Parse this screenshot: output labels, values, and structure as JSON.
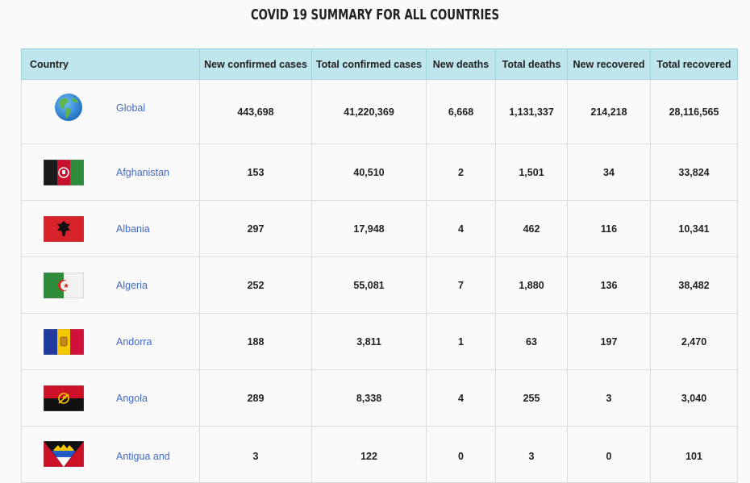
{
  "page": {
    "title": "COVID 19 SUMMARY FOR ALL COUNTRIES"
  },
  "table": {
    "headers": {
      "country": "Country",
      "new_confirmed": "New confirmed cases",
      "total_confirmed": "Total confirmed cases",
      "new_deaths": "New deaths",
      "total_deaths": "Total deaths",
      "new_recovered": "New recovered",
      "total_recovered": "Total recovered"
    },
    "rows": [
      {
        "country": "Global",
        "icon": "globe-icon",
        "new_confirmed": "443,698",
        "total_confirmed": "41,220,369",
        "new_deaths": "6,668",
        "total_deaths": "1,131,337",
        "new_recovered": "214,218",
        "total_recovered": "28,116,565"
      },
      {
        "country": "Afghanistan",
        "icon": "afghanistan-flag-icon",
        "new_confirmed": "153",
        "total_confirmed": "40,510",
        "new_deaths": "2",
        "total_deaths": "1,501",
        "new_recovered": "34",
        "total_recovered": "33,824"
      },
      {
        "country": "Albania",
        "icon": "albania-flag-icon",
        "new_confirmed": "297",
        "total_confirmed": "17,948",
        "new_deaths": "4",
        "total_deaths": "462",
        "new_recovered": "116",
        "total_recovered": "10,341"
      },
      {
        "country": "Algeria",
        "icon": "algeria-flag-icon",
        "new_confirmed": "252",
        "total_confirmed": "55,081",
        "new_deaths": "7",
        "total_deaths": "1,880",
        "new_recovered": "136",
        "total_recovered": "38,482"
      },
      {
        "country": "Andorra",
        "icon": "andorra-flag-icon",
        "new_confirmed": "188",
        "total_confirmed": "3,811",
        "new_deaths": "1",
        "total_deaths": "63",
        "new_recovered": "197",
        "total_recovered": "2,470"
      },
      {
        "country": "Angola",
        "icon": "angola-flag-icon",
        "new_confirmed": "289",
        "total_confirmed": "8,338",
        "new_deaths": "4",
        "total_deaths": "255",
        "new_recovered": "3",
        "total_recovered": "3,040"
      },
      {
        "country": "Antigua and",
        "icon": "antigua-and-barbuda-flag-icon",
        "new_confirmed": "3",
        "total_confirmed": "122",
        "new_deaths": "0",
        "total_deaths": "3",
        "new_recovered": "0",
        "total_recovered": "101"
      }
    ]
  },
  "colors": {
    "header_bg": "#bfe6ed",
    "link": "#4169c8",
    "page_bg": "#fafafa"
  }
}
